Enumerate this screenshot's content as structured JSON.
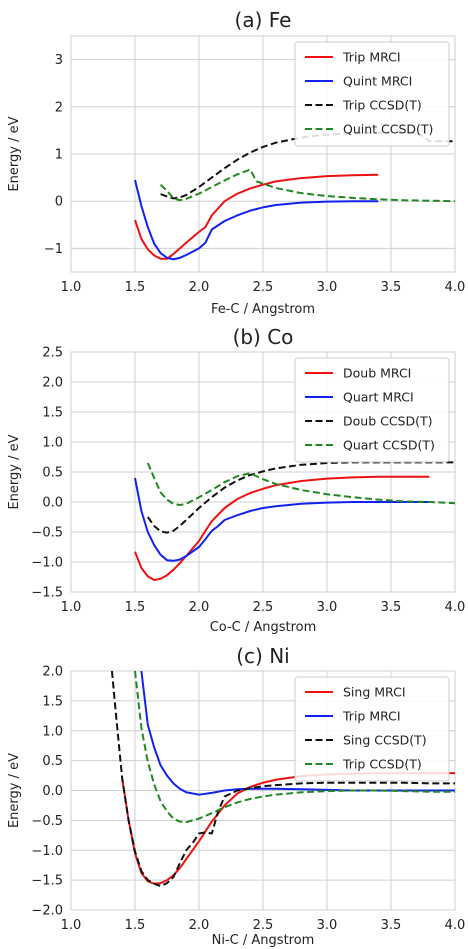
{
  "chart_data": [
    {
      "type": "line",
      "title": "(a) Fe",
      "xlabel": "Fe-C / Angstrom",
      "ylabel": "Energy / eV",
      "xlim": [
        1.0,
        4.0
      ],
      "ylim": [
        -1.5,
        3.5
      ],
      "xticks": [
        1.0,
        1.5,
        2.0,
        2.5,
        3.0,
        3.5,
        4.0
      ],
      "yticks": [
        -1,
        0,
        1,
        2,
        3
      ],
      "xtick_labels": [
        "1.0",
        "1.5",
        "2.0",
        "2.5",
        "3.0",
        "3.5",
        "4.0"
      ],
      "ytick_labels": [
        "−1",
        "0",
        "1",
        "2",
        "3"
      ],
      "grid": true,
      "legend_position": "top-right",
      "series": [
        {
          "name": "Trip MRCI",
          "color": "#ee1111",
          "dash": "solid",
          "x": [
            1.5,
            1.55,
            1.6,
            1.65,
            1.7,
            1.75,
            1.8,
            1.85,
            1.9,
            2.0,
            2.05,
            2.1,
            2.2,
            2.3,
            2.4,
            2.5,
            2.6,
            2.8,
            3.0,
            3.2,
            3.4
          ],
          "y": [
            -0.4,
            -0.8,
            -1.02,
            -1.15,
            -1.22,
            -1.22,
            -1.12,
            -1.0,
            -0.88,
            -0.65,
            -0.55,
            -0.3,
            0.0,
            0.16,
            0.27,
            0.35,
            0.42,
            0.49,
            0.53,
            0.55,
            0.56
          ]
        },
        {
          "name": "Quint MRCI",
          "color": "#1122ee",
          "dash": "solid",
          "x": [
            1.5,
            1.55,
            1.6,
            1.65,
            1.7,
            1.75,
            1.8,
            1.85,
            1.9,
            2.0,
            2.05,
            2.1,
            2.2,
            2.3,
            2.4,
            2.5,
            2.6,
            2.8,
            3.0,
            3.2,
            3.4
          ],
          "y": [
            0.45,
            -0.1,
            -0.55,
            -0.9,
            -1.1,
            -1.2,
            -1.23,
            -1.2,
            -1.14,
            -1.0,
            -0.88,
            -0.6,
            -0.42,
            -0.3,
            -0.2,
            -0.13,
            -0.08,
            -0.03,
            -0.01,
            0.0,
            0.0
          ]
        },
        {
          "name": "Trip CCSD(T)",
          "color": "#111111",
          "dash": "dashed",
          "x": [
            1.7,
            1.75,
            1.8,
            1.85,
            1.9,
            2.0,
            2.1,
            2.2,
            2.3,
            2.4,
            2.5,
            2.6,
            2.8,
            3.0,
            3.2,
            3.4,
            3.6,
            3.7,
            3.8,
            3.9,
            4.0
          ],
          "y": [
            0.15,
            0.1,
            0.06,
            0.08,
            0.13,
            0.3,
            0.5,
            0.7,
            0.88,
            1.03,
            1.15,
            1.24,
            1.35,
            1.41,
            1.44,
            1.45,
            1.46,
            1.46,
            1.27,
            1.27,
            1.27
          ]
        },
        {
          "name": "Quint CCSD(T)",
          "color": "#228822",
          "dash": "dashed",
          "x": [
            1.7,
            1.75,
            1.8,
            1.85,
            1.9,
            2.0,
            2.1,
            2.2,
            2.3,
            2.4,
            2.45,
            2.6,
            2.8,
            3.0,
            3.2,
            3.4,
            3.6,
            3.8,
            4.0
          ],
          "y": [
            0.35,
            0.22,
            0.06,
            0.02,
            0.05,
            0.16,
            0.3,
            0.44,
            0.57,
            0.67,
            0.42,
            0.28,
            0.17,
            0.11,
            0.07,
            0.04,
            0.02,
            0.01,
            0.0
          ]
        }
      ]
    },
    {
      "type": "line",
      "title": "(b) Co",
      "xlabel": "Co-C / Angstrom",
      "ylabel": "Energy / eV",
      "xlim": [
        1.0,
        4.0
      ],
      "ylim": [
        -1.5,
        2.5
      ],
      "xticks": [
        1.0,
        1.5,
        2.0,
        2.5,
        3.0,
        3.5,
        4.0
      ],
      "yticks": [
        -1.5,
        -1.0,
        -0.5,
        0.0,
        0.5,
        1.0,
        1.5,
        2.0,
        2.5
      ],
      "xtick_labels": [
        "1.0",
        "1.5",
        "2.0",
        "2.5",
        "3.0",
        "3.5",
        "4.0"
      ],
      "ytick_labels": [
        "−1.5",
        "−1.0",
        "−0.5",
        "0.0",
        "0.5",
        "1.0",
        "1.5",
        "2.0",
        "2.5"
      ],
      "grid": true,
      "legend_position": "top-right",
      "series": [
        {
          "name": "Doub MRCI",
          "color": "#ee1111",
          "dash": "solid",
          "x": [
            1.5,
            1.55,
            1.6,
            1.65,
            1.7,
            1.75,
            1.8,
            1.85,
            1.9,
            2.0,
            2.05,
            2.1,
            2.2,
            2.3,
            2.4,
            2.5,
            2.6,
            2.8,
            3.0,
            3.2,
            3.4,
            3.6,
            3.8
          ],
          "y": [
            -0.83,
            -1.1,
            -1.24,
            -1.3,
            -1.28,
            -1.22,
            -1.13,
            -1.02,
            -0.9,
            -0.65,
            -0.48,
            -0.32,
            -0.1,
            0.05,
            0.15,
            0.22,
            0.28,
            0.35,
            0.39,
            0.41,
            0.42,
            0.42,
            0.42
          ]
        },
        {
          "name": "Quart MRCI",
          "color": "#1122ee",
          "dash": "solid",
          "x": [
            1.5,
            1.55,
            1.6,
            1.65,
            1.7,
            1.75,
            1.8,
            1.85,
            1.9,
            2.0,
            2.05,
            2.1,
            2.15,
            2.2,
            2.3,
            2.4,
            2.5,
            2.6,
            2.8,
            3.0,
            3.2,
            3.4,
            3.6,
            3.8
          ],
          "y": [
            0.4,
            -0.15,
            -0.5,
            -0.72,
            -0.88,
            -0.97,
            -0.98,
            -0.96,
            -0.9,
            -0.75,
            -0.62,
            -0.48,
            -0.4,
            -0.3,
            -0.22,
            -0.15,
            -0.1,
            -0.07,
            -0.03,
            -0.01,
            0.0,
            0.0,
            0.0,
            0.0
          ]
        },
        {
          "name": "Doub CCSD(T)",
          "color": "#111111",
          "dash": "dashed",
          "x": [
            1.6,
            1.65,
            1.7,
            1.75,
            1.8,
            1.85,
            1.9,
            2.0,
            2.1,
            2.2,
            2.3,
            2.4,
            2.5,
            2.6,
            2.8,
            3.0,
            3.2,
            3.4,
            3.6,
            3.8,
            4.0
          ],
          "y": [
            -0.25,
            -0.4,
            -0.49,
            -0.51,
            -0.48,
            -0.4,
            -0.3,
            -0.1,
            0.08,
            0.24,
            0.36,
            0.45,
            0.51,
            0.56,
            0.62,
            0.65,
            0.66,
            0.66,
            0.66,
            0.66,
            0.66
          ]
        },
        {
          "name": "Quart CCSD(T)",
          "color": "#228822",
          "dash": "dashed",
          "x": [
            1.6,
            1.65,
            1.7,
            1.75,
            1.8,
            1.85,
            1.9,
            2.0,
            2.1,
            2.2,
            2.3,
            2.4,
            2.5,
            2.6,
            2.8,
            3.0,
            3.2,
            3.4,
            3.6,
            3.8,
            4.0
          ],
          "y": [
            0.65,
            0.4,
            0.16,
            0.04,
            -0.03,
            -0.05,
            -0.03,
            0.08,
            0.2,
            0.33,
            0.43,
            0.48,
            0.38,
            0.3,
            0.2,
            0.13,
            0.08,
            0.04,
            0.01,
            0.0,
            -0.02
          ]
        }
      ]
    },
    {
      "type": "line",
      "title": "(c) Ni",
      "xlabel": "Ni-C / Angstrom",
      "ylabel": "Energy / eV",
      "xlim": [
        1.0,
        4.0
      ],
      "ylim": [
        -2.0,
        2.0
      ],
      "xticks": [
        1.0,
        1.5,
        2.0,
        2.5,
        3.0,
        3.5,
        4.0
      ],
      "yticks": [
        -2.0,
        -1.5,
        -1.0,
        -0.5,
        0.0,
        0.5,
        1.0,
        1.5,
        2.0
      ],
      "xtick_labels": [
        "1.0",
        "1.5",
        "2.0",
        "2.5",
        "3.0",
        "3.5",
        "4.0"
      ],
      "ytick_labels": [
        "−2.0",
        "−1.5",
        "−1.0",
        "−0.5",
        "0.0",
        "0.5",
        "1.0",
        "1.5",
        "2.0"
      ],
      "grid": true,
      "legend_position": "top-right",
      "series": [
        {
          "name": "Sing MRCI",
          "color": "#ee1111",
          "dash": "solid",
          "x": [
            1.4,
            1.45,
            1.5,
            1.55,
            1.6,
            1.65,
            1.7,
            1.75,
            1.8,
            1.85,
            1.9,
            2.0,
            2.1,
            2.2,
            2.3,
            2.4,
            2.5,
            2.6,
            2.8,
            3.0,
            3.2,
            3.4,
            3.6,
            3.8,
            4.0
          ],
          "y": [
            0.2,
            -0.5,
            -1.05,
            -1.38,
            -1.52,
            -1.56,
            -1.55,
            -1.5,
            -1.42,
            -1.3,
            -1.15,
            -0.85,
            -0.52,
            -0.25,
            -0.05,
            0.06,
            0.13,
            0.18,
            0.24,
            0.27,
            0.28,
            0.29,
            0.29,
            0.29,
            0.29
          ]
        },
        {
          "name": "Trip MRCI",
          "color": "#1122ee",
          "dash": "solid",
          "x": [
            1.55,
            1.6,
            1.65,
            1.7,
            1.75,
            1.8,
            1.85,
            1.9,
            2.0,
            2.1,
            2.2,
            2.3,
            2.4,
            2.5,
            2.6,
            2.8,
            3.0,
            3.2,
            3.4,
            3.6,
            3.8,
            4.0
          ],
          "y": [
            2.0,
            1.1,
            0.72,
            0.42,
            0.25,
            0.12,
            0.03,
            -0.03,
            -0.07,
            -0.04,
            0.0,
            0.02,
            0.03,
            0.03,
            0.03,
            0.02,
            0.01,
            0.0,
            0.0,
            0.0,
            0.0,
            0.0
          ]
        },
        {
          "name": "Sing CCSD(T)",
          "color": "#111111",
          "dash": "dashed",
          "x": [
            1.32,
            1.35,
            1.4,
            1.45,
            1.5,
            1.55,
            1.6,
            1.65,
            1.7,
            1.75,
            1.8,
            1.85,
            1.9,
            1.95,
            2.0,
            2.05,
            2.1,
            2.15,
            2.2,
            2.3,
            2.4,
            2.5,
            2.6,
            2.8,
            3.0,
            3.2,
            3.4,
            3.6,
            3.8,
            4.0
          ],
          "y": [
            2.0,
            1.3,
            0.2,
            -0.5,
            -1.02,
            -1.35,
            -1.5,
            -1.56,
            -1.6,
            -1.55,
            -1.45,
            -1.22,
            -1.0,
            -0.88,
            -0.72,
            -0.7,
            -0.72,
            -0.35,
            -0.1,
            0.0,
            0.04,
            0.07,
            0.09,
            0.12,
            0.13,
            0.13,
            0.13,
            0.13,
            0.12,
            0.12
          ]
        },
        {
          "name": "Trip CCSD(T)",
          "color": "#228822",
          "dash": "dashed",
          "x": [
            1.5,
            1.55,
            1.6,
            1.65,
            1.7,
            1.75,
            1.8,
            1.85,
            1.9,
            2.0,
            2.1,
            2.2,
            2.3,
            2.4,
            2.5,
            2.6,
            2.8,
            3.0,
            3.2,
            3.4,
            3.6,
            3.8,
            4.0
          ],
          "y": [
            2.0,
            1.05,
            0.48,
            0.1,
            -0.18,
            -0.35,
            -0.47,
            -0.52,
            -0.53,
            -0.47,
            -0.38,
            -0.28,
            -0.2,
            -0.14,
            -0.1,
            -0.07,
            -0.03,
            -0.01,
            0.0,
            0.0,
            -0.01,
            -0.02,
            -0.02
          ]
        }
      ]
    }
  ]
}
